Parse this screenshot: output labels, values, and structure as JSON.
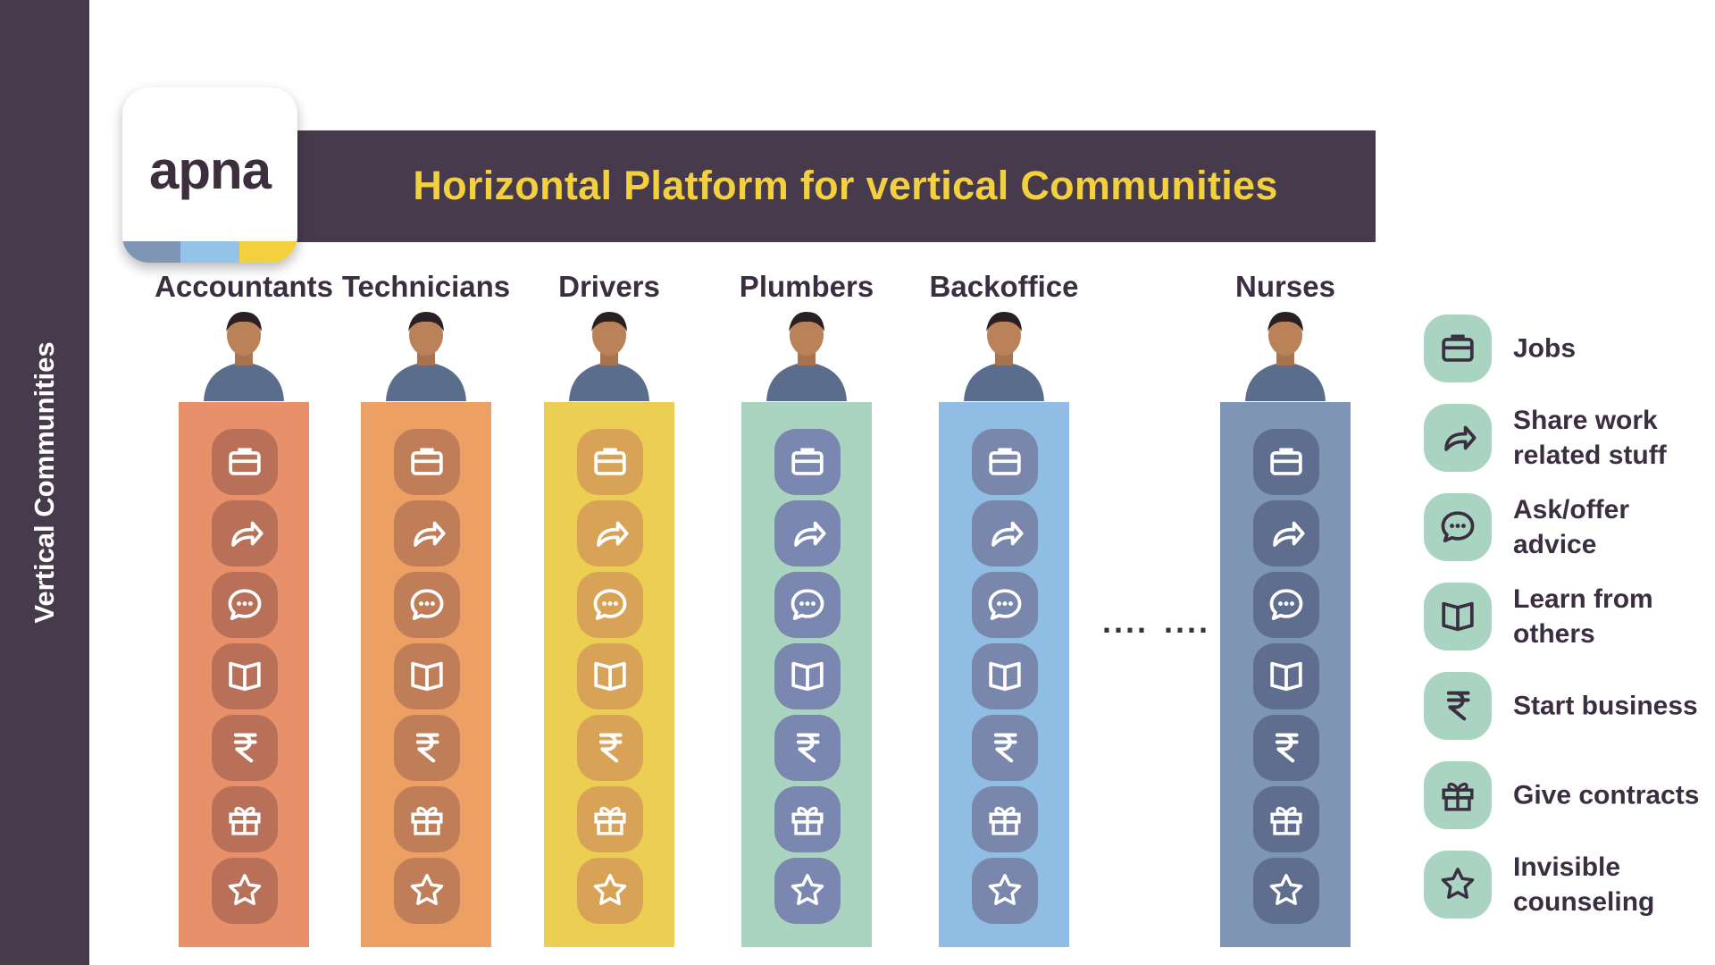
{
  "sidebar": {
    "label": "Vertical Communities"
  },
  "logo": {
    "text": "apna",
    "stripe_colors": [
      "#7f95b6",
      "#93c3e8",
      "#f3d03e"
    ]
  },
  "banner": {
    "title": "Horizontal Platform for vertical Communities"
  },
  "communities": [
    {
      "label": "Accountants",
      "color": "#e8906a",
      "tile": "#b87058",
      "icon_color": "#ffffff"
    },
    {
      "label": "Technicians",
      "color": "#eda064",
      "tile": "#c07e58",
      "icon_color": "#ffffff"
    },
    {
      "label": "Drivers",
      "color": "#ebcf52",
      "tile": "#d9a357",
      "icon_color": "#ffffff"
    },
    {
      "label": "Plumbers",
      "color": "#a9d4bf",
      "tile": "#7a87b0",
      "icon_color": "#ffffff"
    },
    {
      "label": "Backoffice",
      "color": "#8fbde3",
      "tile": "#7a87ad",
      "icon_color": "#ffffff"
    },
    {
      "label": "Nurses",
      "color": "#7f95b6",
      "tile": "#5f6e8e",
      "icon_color": "#ffffff"
    }
  ],
  "ellipsis": [
    "....",
    "...."
  ],
  "features": [
    {
      "icon": "briefcase-icon",
      "label": "Jobs"
    },
    {
      "icon": "share-arrow-icon",
      "label": "Share work related stuff"
    },
    {
      "icon": "chat-bubble-icon",
      "label": "Ask/offer advice"
    },
    {
      "icon": "book-icon",
      "label": "Learn from others"
    },
    {
      "icon": "rupee-icon",
      "label": "Start business"
    },
    {
      "icon": "gift-icon",
      "label": "Give contracts"
    },
    {
      "icon": "star-icon",
      "label": "Invisible counseling"
    }
  ],
  "legend_icon_color": "#3b2e40"
}
